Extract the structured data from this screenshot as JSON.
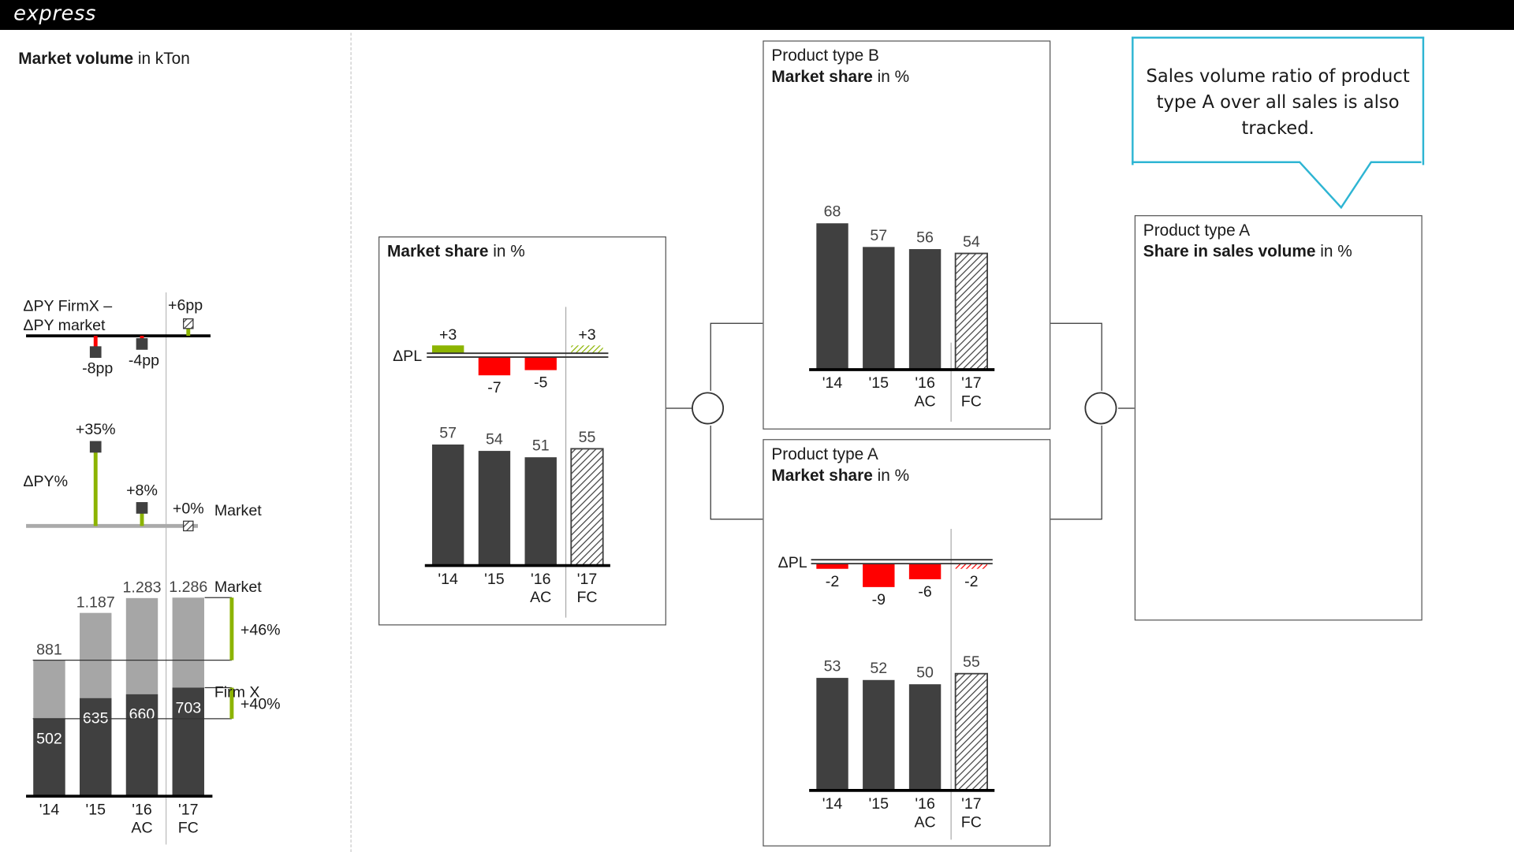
{
  "header": {
    "brand": "express"
  },
  "left": {
    "title_bold": "Market volume",
    "title_rest": " in kTon",
    "delta_label_1": "ΔPY FirmX –",
    "delta_label_2": "ΔPY market",
    "pct_label": "ΔPY%",
    "market_label": "Market",
    "firm_label": "Firm X",
    "growth_market": "+46%",
    "growth_firm": "+40%"
  },
  "center_panel": {
    "title_bold": "Market share",
    "title_rest": " in %",
    "delta_label": "ΔPL"
  },
  "panel_b": {
    "line1": "Product type B",
    "title_bold": "Market share",
    "title_rest": " in %"
  },
  "panel_a": {
    "line1": "Product type A",
    "title_bold": "Market share",
    "title_rest": " in %",
    "delta_label": "ΔPL"
  },
  "panel_sales": {
    "line1": "Product type A",
    "title_bold": "Share in sales volume",
    "title_rest": " in %"
  },
  "callout": {
    "text": "Sales volume ratio of product type A over all sales is also tracked."
  },
  "colors": {
    "actual": "#404040",
    "market": "#a6a6a6",
    "positive": "#8cb400",
    "negative": "#ff0000",
    "callout": "#2eb5d3"
  },
  "chart_data": [
    {
      "id": "diff_pp",
      "type": "bar",
      "categories": [
        "'14",
        "'15",
        "'16",
        "'17"
      ],
      "values": [
        null,
        -8,
        -4,
        6
      ],
      "labels": [
        "",
        "-8pp",
        "-4pp",
        "+6pp"
      ],
      "forecast": [
        false,
        false,
        false,
        true
      ]
    },
    {
      "id": "market_growth",
      "type": "bar",
      "categories": [
        "'14",
        "'15",
        "'16",
        "'17"
      ],
      "values": [
        null,
        35,
        8,
        0
      ],
      "labels": [
        "",
        "+35%",
        "+8%",
        "+0%"
      ],
      "forecast": [
        false,
        false,
        false,
        true
      ]
    },
    {
      "id": "market_volume",
      "type": "bar",
      "categories": [
        "'14",
        "'15",
        "'16",
        "'17"
      ],
      "sub_categories": [
        "",
        "",
        "AC",
        "FC"
      ],
      "series": [
        {
          "name": "Firm X",
          "values": [
            502,
            635,
            660,
            703
          ]
        },
        {
          "name": "Market",
          "values": [
            881,
            1187,
            1283,
            1286
          ]
        }
      ],
      "value_labels_firm": [
        "502",
        "635",
        "660",
        "703"
      ],
      "value_labels_market": [
        "881",
        "1.187",
        "1.283",
        "1.286"
      ],
      "ylim": [
        0,
        1300
      ]
    },
    {
      "id": "market_share",
      "type": "bar",
      "categories": [
        "'14",
        "'15",
        "'16",
        "'17"
      ],
      "sub_categories": [
        "",
        "",
        "AC",
        "FC"
      ],
      "values": [
        57,
        54,
        51,
        55
      ],
      "forecast": [
        false,
        false,
        false,
        true
      ],
      "delta_pl": [
        3,
        -7,
        -5,
        3
      ],
      "delta_labels": [
        "+3",
        "-7",
        "-5",
        "+3"
      ]
    },
    {
      "id": "product_b_share",
      "type": "bar",
      "categories": [
        "'14",
        "'15",
        "'16",
        "'17"
      ],
      "sub_categories": [
        "",
        "",
        "AC",
        "FC"
      ],
      "values": [
        68,
        57,
        56,
        54
      ],
      "forecast": [
        false,
        false,
        false,
        true
      ]
    },
    {
      "id": "product_a_share",
      "type": "bar",
      "categories": [
        "'14",
        "'15",
        "'16",
        "'17"
      ],
      "sub_categories": [
        "",
        "",
        "AC",
        "FC"
      ],
      "values": [
        53,
        52,
        50,
        55
      ],
      "forecast": [
        false,
        false,
        false,
        true
      ],
      "delta_pl": [
        -2,
        -9,
        -6,
        -2
      ],
      "delta_labels": [
        "-2",
        "-9",
        "-6",
        "-2"
      ]
    }
  ]
}
